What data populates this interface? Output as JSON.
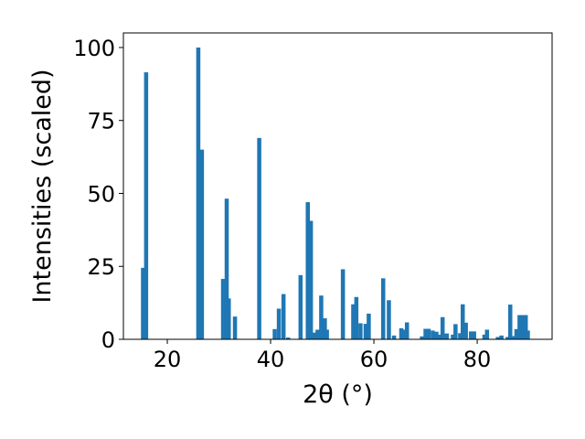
{
  "chart_data": {
    "type": "bar",
    "xlabel": "2θ (°)",
    "ylabel": "Intensities (scaled)",
    "xlim": [
      11.5,
      94.5
    ],
    "ylim": [
      0,
      105
    ],
    "grid": false,
    "x_ticks": [
      20,
      40,
      60,
      80
    ],
    "y_ticks": [
      0,
      25,
      50,
      75,
      100
    ],
    "bar_width": 0.8,
    "color": "#1f77b4",
    "x": [
      15.3,
      15.9,
      26.0,
      26.7,
      30.8,
      31.5,
      31.9,
      33.1,
      37.8,
      40.8,
      41.6,
      42.5,
      43.4,
      45.8,
      47.2,
      47.8,
      48.4,
      49.1,
      49.8,
      50.5,
      50.9,
      54.0,
      56.0,
      56.6,
      57.4,
      58.4,
      59.0,
      61.8,
      62.9,
      63.9,
      65.3,
      65.8,
      66.4,
      69.3,
      70.0,
      70.6,
      71.4,
      72.1,
      72.8,
      73.3,
      74.1,
      75.3,
      75.8,
      76.7,
      77.2,
      77.8,
      78.8,
      79.4,
      81.4,
      81.9,
      84.0,
      84.7,
      85.9,
      86.4,
      87.1,
      87.6,
      88.2,
      88.9,
      89.4,
      89.8
    ],
    "values": [
      24.5,
      91.5,
      100.0,
      65.0,
      20.7,
      48.2,
      14.0,
      7.8,
      69.0,
      3.5,
      10.5,
      15.5,
      0.6,
      22.0,
      47.0,
      40.6,
      2.3,
      3.3,
      15.0,
      7.2,
      3.3,
      24.0,
      12.0,
      14.5,
      5.5,
      5.3,
      8.8,
      20.9,
      13.4,
      1.3,
      3.8,
      3.3,
      5.8,
      1.0,
      3.6,
      3.6,
      3.0,
      2.6,
      1.6,
      7.6,
      2.0,
      1.6,
      5.2,
      2.1,
      12.0,
      5.7,
      2.7,
      2.7,
      1.6,
      3.3,
      0.8,
      1.3,
      0.8,
      11.9,
      1.1,
      3.5,
      8.3,
      8.3,
      8.3,
      3.0
    ]
  }
}
